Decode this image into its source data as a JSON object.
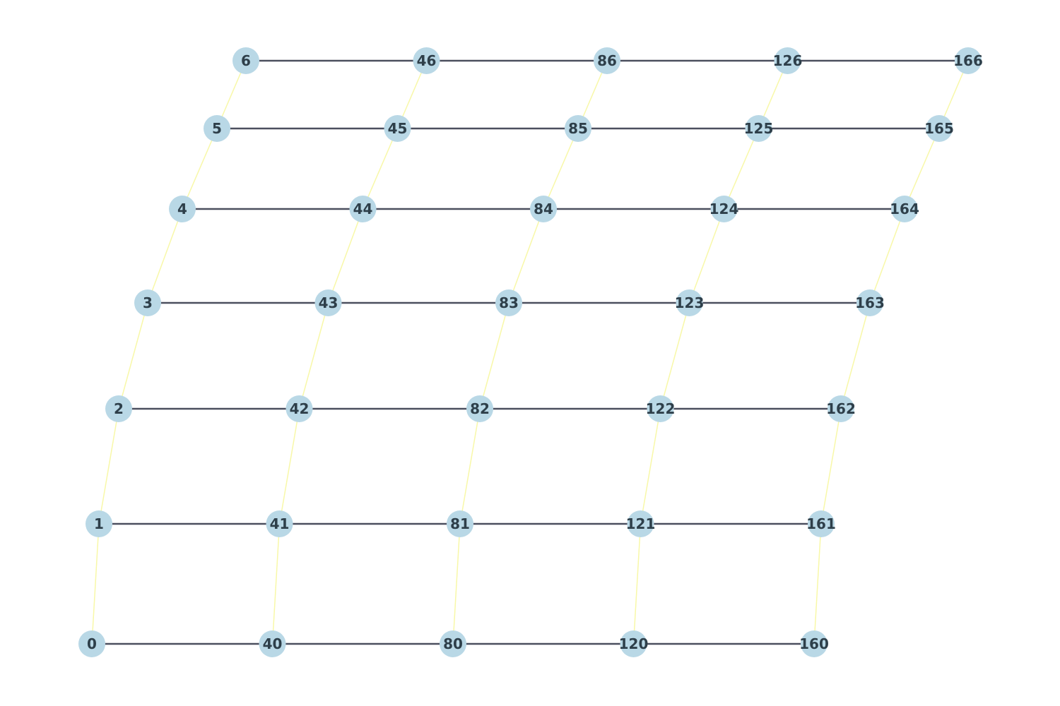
{
  "colors": {
    "horizontal_edge": "#4b4f5e",
    "vertical_edge": "#f8f8a8",
    "node_fill": "#b9d8e6",
    "label": "#2e3f4a"
  },
  "columns": [
    {
      "nodes": [
        "0",
        "1",
        "2",
        "3",
        "4",
        "5",
        "6"
      ]
    },
    {
      "nodes": [
        "40",
        "41",
        "42",
        "43",
        "44",
        "45",
        "46"
      ]
    },
    {
      "nodes": [
        "80",
        "81",
        "82",
        "83",
        "84",
        "85",
        "86"
      ]
    },
    {
      "nodes": [
        "120",
        "121",
        "122",
        "123",
        "124",
        "125",
        "126"
      ]
    },
    {
      "nodes": [
        "160",
        "161",
        "162",
        "163",
        "164",
        "165",
        "166"
      ]
    }
  ],
  "edges": {
    "horizontal": "each row connects consecutive columns",
    "vertical": "each column connects consecutive rows"
  }
}
